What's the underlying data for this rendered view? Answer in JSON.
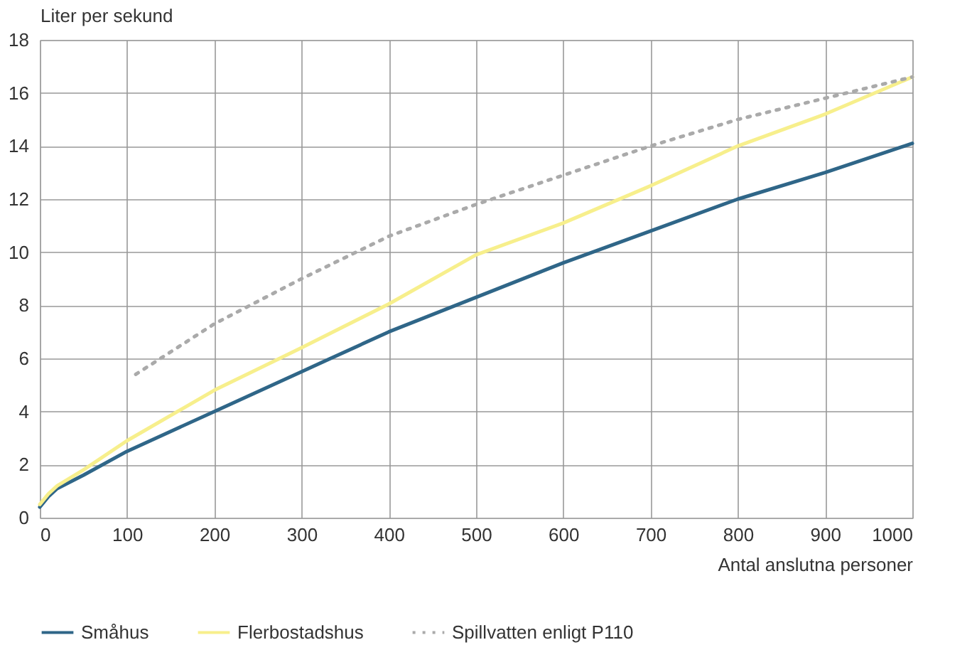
{
  "chart_data": {
    "type": "line",
    "xlabel": "Antal anslutna personer",
    "ylabel": "Liter per sekund",
    "xlim": [
      0,
      1000
    ],
    "xticks": [
      0,
      100,
      200,
      300,
      400,
      500,
      600,
      700,
      800,
      900,
      1000
    ],
    "ylim": [
      0,
      18
    ],
    "yticks": [
      0,
      2,
      4,
      6,
      8,
      10,
      12,
      14,
      16,
      18
    ],
    "grid": true,
    "legend": "bottom",
    "series": [
      {
        "name": "Småhus",
        "color": "#2f6688",
        "line_style": "solid",
        "x": [
          0,
          10,
          20,
          50,
          100,
          200,
          300,
          400,
          500,
          600,
          700,
          800,
          900,
          1000
        ],
        "values": [
          0.4,
          0.8,
          1.1,
          1.6,
          2.5,
          4.0,
          5.5,
          7.0,
          8.3,
          9.6,
          10.8,
          12.0,
          13.0,
          14.1
        ]
      },
      {
        "name": "Flerbostadshus",
        "color": "#f7ef8c",
        "line_style": "solid",
        "x": [
          0,
          10,
          20,
          50,
          100,
          200,
          300,
          400,
          500,
          600,
          700,
          800,
          900,
          1000
        ],
        "values": [
          0.5,
          0.9,
          1.2,
          1.8,
          2.9,
          4.8,
          6.4,
          8.05,
          9.9,
          11.1,
          12.5,
          14.0,
          15.2,
          16.6
        ]
      },
      {
        "name": "Spillvatten enligt P110",
        "color": "#aaaaaa",
        "line_style": "dotted",
        "x": [
          110,
          200,
          300,
          400,
          500,
          600,
          700,
          800,
          900,
          1000
        ],
        "values": [
          5.4,
          7.3,
          9.0,
          10.6,
          11.8,
          12.9,
          14.0,
          15.0,
          15.8,
          16.6
        ]
      }
    ]
  }
}
